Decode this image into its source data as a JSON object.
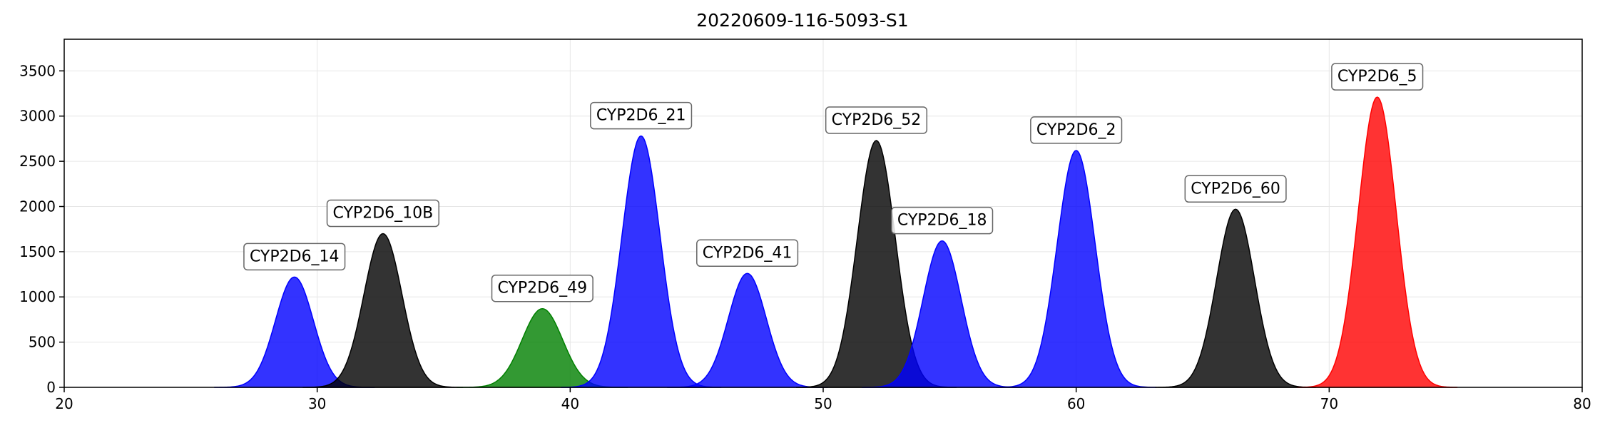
{
  "chart_data": {
    "type": "area",
    "title": "20220609-116-5093-S1",
    "xlabel": "",
    "ylabel": "",
    "xlim": [
      20,
      80
    ],
    "ylim": [
      0,
      3850
    ],
    "x_ticks": [
      20,
      30,
      40,
      50,
      60,
      70,
      80
    ],
    "y_ticks": [
      0,
      500,
      1000,
      1500,
      2000,
      2500,
      3000,
      3500
    ],
    "grid": true,
    "peaks": [
      {
        "label": "CYP2D6_14",
        "center": 29.1,
        "height": 1220,
        "sigma": 0.75,
        "color": "#0000ff"
      },
      {
        "label": "CYP2D6_10B",
        "center": 32.6,
        "height": 1700,
        "sigma": 0.75,
        "color": "#000000"
      },
      {
        "label": "CYP2D6_49",
        "center": 38.9,
        "height": 870,
        "sigma": 0.8,
        "color": "#008000"
      },
      {
        "label": "CYP2D6_21",
        "center": 42.8,
        "height": 2780,
        "sigma": 0.75,
        "color": "#0000ff"
      },
      {
        "label": "CYP2D6_41",
        "center": 47.0,
        "height": 1260,
        "sigma": 0.75,
        "color": "#0000ff"
      },
      {
        "label": "CYP2D6_52",
        "center": 52.1,
        "height": 2730,
        "sigma": 0.75,
        "color": "#000000"
      },
      {
        "label": "CYP2D6_18",
        "center": 54.7,
        "height": 1620,
        "sigma": 0.75,
        "color": "#0000ff"
      },
      {
        "label": "CYP2D6_2",
        "center": 60.0,
        "height": 2620,
        "sigma": 0.75,
        "color": "#0000ff"
      },
      {
        "label": "CYP2D6_60",
        "center": 66.3,
        "height": 1970,
        "sigma": 0.75,
        "color": "#000000"
      },
      {
        "label": "CYP2D6_5",
        "center": 71.9,
        "height": 3210,
        "sigma": 0.75,
        "color": "#ff0000"
      }
    ]
  }
}
